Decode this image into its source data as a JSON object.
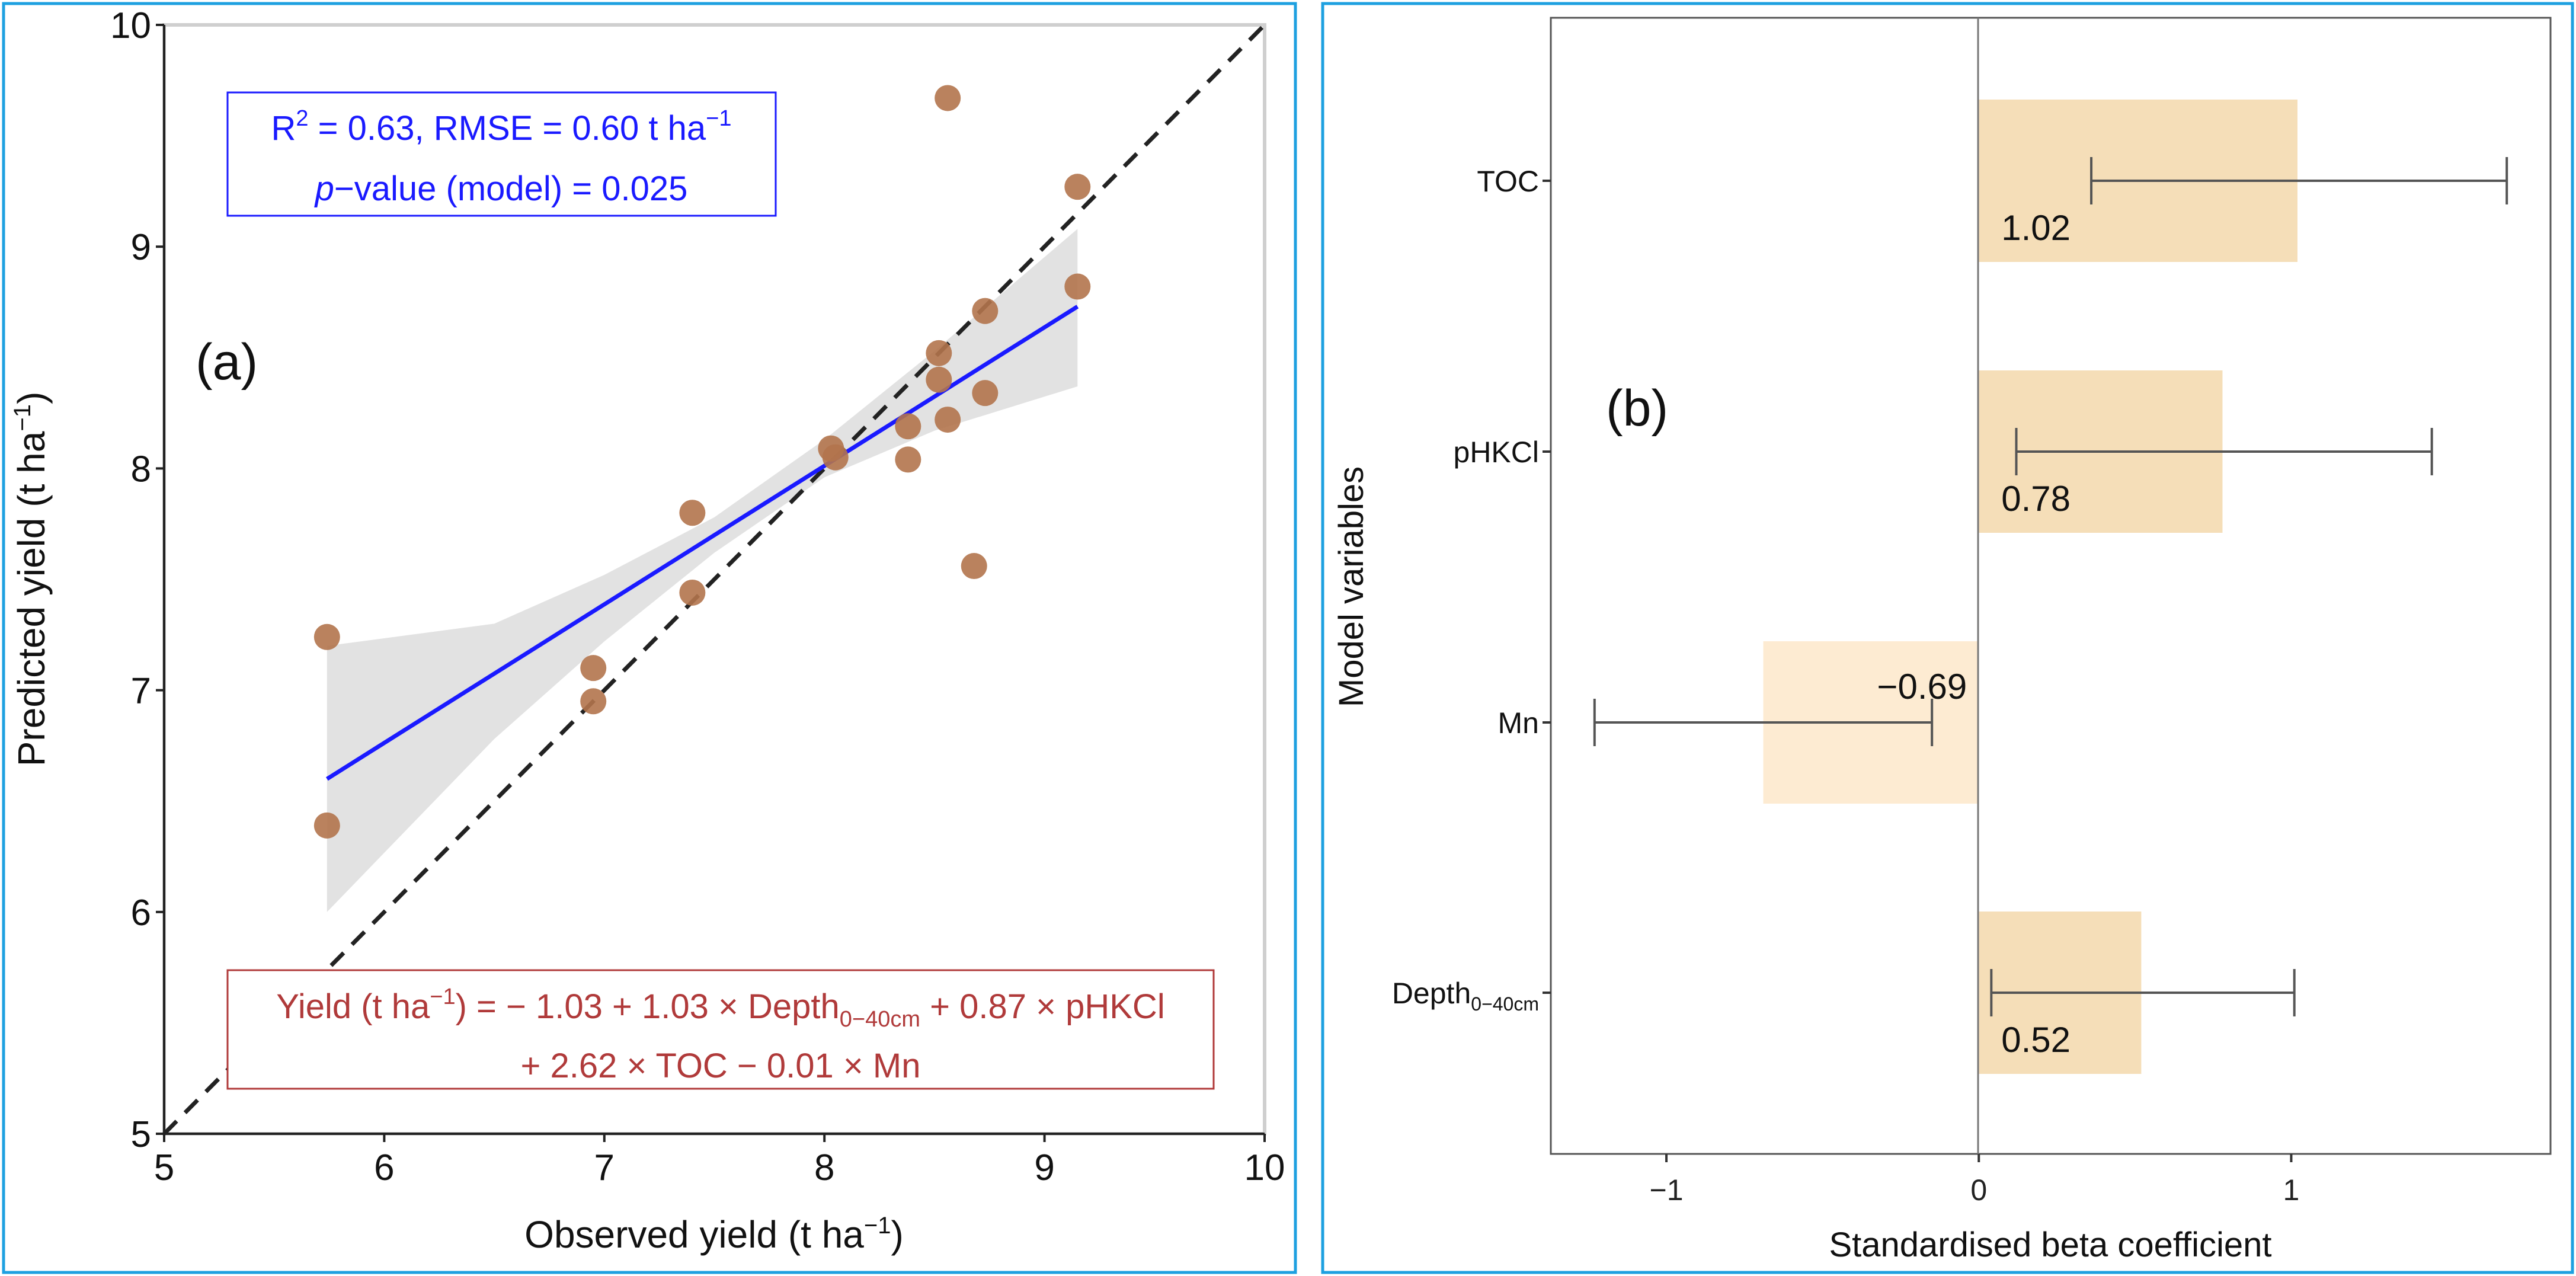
{
  "chart_data": [
    {
      "type": "scatter",
      "panel_label": "(a)",
      "xlabel": {
        "main": "Observed yield (t ha",
        "sup": "−1",
        "close": ")"
      },
      "ylabel": {
        "main": "Predicted yield (t ha",
        "sup": "−1",
        "close": ")"
      },
      "xlim": [
        5,
        10
      ],
      "ylim": [
        5,
        10
      ],
      "xticks": [
        "5",
        "6",
        "7",
        "8",
        "9",
        "10"
      ],
      "yticks": [
        "5",
        "6",
        "7",
        "8",
        "9",
        "10"
      ],
      "points": [
        [
          5.74,
          7.24
        ],
        [
          5.74,
          6.39
        ],
        [
          6.95,
          7.1
        ],
        [
          6.95,
          6.95
        ],
        [
          7.4,
          7.8
        ],
        [
          7.4,
          7.44
        ],
        [
          8.03,
          8.09
        ],
        [
          8.05,
          8.05
        ],
        [
          8.38,
          8.19
        ],
        [
          8.38,
          8.04
        ],
        [
          8.52,
          8.52
        ],
        [
          8.52,
          8.4
        ],
        [
          8.56,
          8.22
        ],
        [
          8.56,
          9.67
        ],
        [
          8.68,
          7.56
        ],
        [
          8.73,
          8.71
        ],
        [
          8.73,
          8.34
        ],
        [
          9.15,
          9.27
        ],
        [
          9.15,
          8.82
        ]
      ],
      "point_color": "#b3744d",
      "regression": {
        "x": [
          5.74,
          9.15
        ],
        "y": [
          6.6,
          8.73
        ],
        "color": "#1a1aff"
      },
      "confidence_band": {
        "x": [
          5.74,
          6.5,
          7.0,
          7.5,
          8.0,
          8.5,
          9.15
        ],
        "lower": [
          6.0,
          6.78,
          7.22,
          7.62,
          7.96,
          8.17,
          8.37
        ],
        "upper": [
          7.2,
          7.3,
          7.52,
          7.78,
          8.13,
          8.53,
          9.08
        ]
      },
      "identity_line": true,
      "stats_box": {
        "r": "R",
        "r_sup": "2",
        "r_rest": " = 0.63,  RMSE = 0.60  t ha",
        "unit_sup": "−1",
        "p_italic": "p",
        "p_rest": "−value (model) =  0.025",
        "color": "#1a1aff"
      },
      "equation_box": {
        "line1_a": "Yield (t ha",
        "line1_sup": "−1",
        "line1_b": ") = − 1.03 + 1.03 × Depth",
        "line1_sub": "0−40cm",
        "line1_c": " + 0.87 × pHKCl",
        "line2": "+ 2.62 × TOC − 0.01 × Mn",
        "color": "#b03a3a"
      }
    },
    {
      "type": "bar",
      "orientation": "horizontal",
      "panel_label": "(b)",
      "xlabel": "Standardised beta coefficient",
      "ylabel": "Model variables",
      "xlim": [
        -1.37,
        1.83
      ],
      "xticks": [
        "-1",
        "0",
        "1"
      ],
      "xtick_labels": [
        "−1",
        "0",
        "1"
      ],
      "categories": [
        {
          "main": "TOC",
          "sub": ""
        },
        {
          "main": "pHKCl",
          "sub": ""
        },
        {
          "main": "Mn",
          "sub": ""
        },
        {
          "main": "Depth",
          "sub": "0−40cm"
        }
      ],
      "values": [
        1.02,
        0.78,
        -0.69,
        0.52
      ],
      "value_labels": [
        "1.02",
        "0.78",
        "−0.69",
        "0.52"
      ],
      "ci_lower": [
        0.36,
        0.12,
        -1.23,
        0.04
      ],
      "ci_upper": [
        1.69,
        1.45,
        -0.15,
        1.01
      ],
      "bar_color_positive": "#f5deb8",
      "bar_color_negative": "#fdebd2"
    }
  ]
}
